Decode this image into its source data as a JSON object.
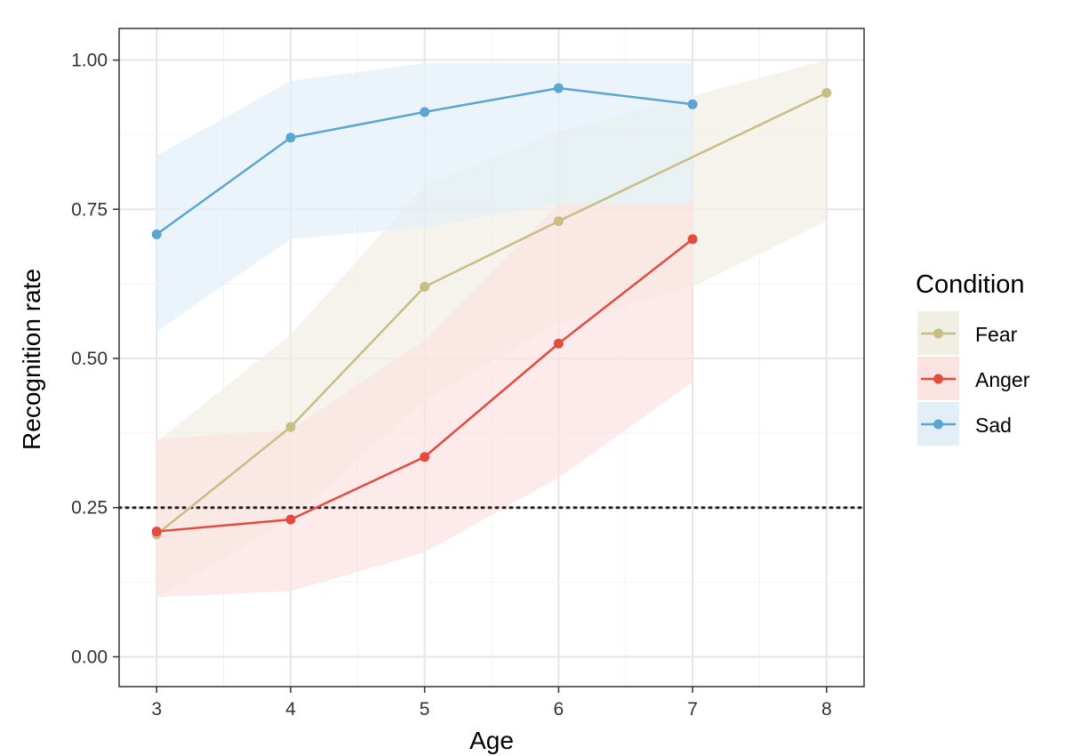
{
  "chart_data": {
    "type": "line",
    "xlabel": "Age",
    "ylabel": "Recognition rate",
    "xlim": [
      2.72,
      8.28
    ],
    "ylim": [
      -0.05,
      1.053
    ],
    "xticks": [
      3,
      4,
      5,
      6,
      7,
      8
    ],
    "xtick_labels": [
      "3",
      "4",
      "5",
      "6",
      "7",
      "8"
    ],
    "yticks": [
      0,
      0.25,
      0.5,
      0.75,
      1.0
    ],
    "ytick_labels": [
      "0.00",
      "0.25",
      "0.50",
      "0.75",
      "1.00"
    ],
    "grid": true,
    "reference_line": {
      "y": 0.25,
      "style": "dotted"
    },
    "legend": {
      "title": "Condition",
      "position": "right"
    },
    "series": [
      {
        "name": "Fear",
        "color": "#c8bd85",
        "band_color": "#f1eee4",
        "x": [
          3,
          4,
          5,
          6,
          8
        ],
        "y": [
          0.205,
          0.385,
          0.62,
          0.73,
          0.945
        ],
        "band_x": [
          3,
          4,
          5,
          6,
          7,
          8
        ],
        "band_lower": [
          0.1,
          0.23,
          0.43,
          0.56,
          0.62,
          0.73
        ],
        "band_upper": [
          0.36,
          0.54,
          0.79,
          0.88,
          0.94,
          1.0
        ]
      },
      {
        "name": "Anger",
        "color": "#e34b3f",
        "band_color": "#fbe3e1",
        "x": [
          3,
          4,
          5,
          6,
          7
        ],
        "y": [
          0.21,
          0.23,
          0.335,
          0.525,
          0.7
        ],
        "band_x": [
          3,
          4,
          5,
          6,
          7
        ],
        "band_lower": [
          0.1,
          0.11,
          0.175,
          0.3,
          0.46
        ],
        "band_upper": [
          0.365,
          0.38,
          0.53,
          0.76,
          0.76
        ]
      },
      {
        "name": "Sad",
        "color": "#5aa6d0",
        "band_color": "#e3eff8",
        "x": [
          3,
          4,
          5,
          6,
          7
        ],
        "y": [
          0.708,
          0.87,
          0.913,
          0.953,
          0.926
        ],
        "band_x": [
          3,
          4,
          5,
          6,
          7
        ],
        "band_lower": [
          0.545,
          0.7,
          0.72,
          0.76,
          0.76
        ],
        "band_upper": [
          0.84,
          0.965,
          0.995,
          0.995,
          0.995
        ]
      }
    ]
  }
}
